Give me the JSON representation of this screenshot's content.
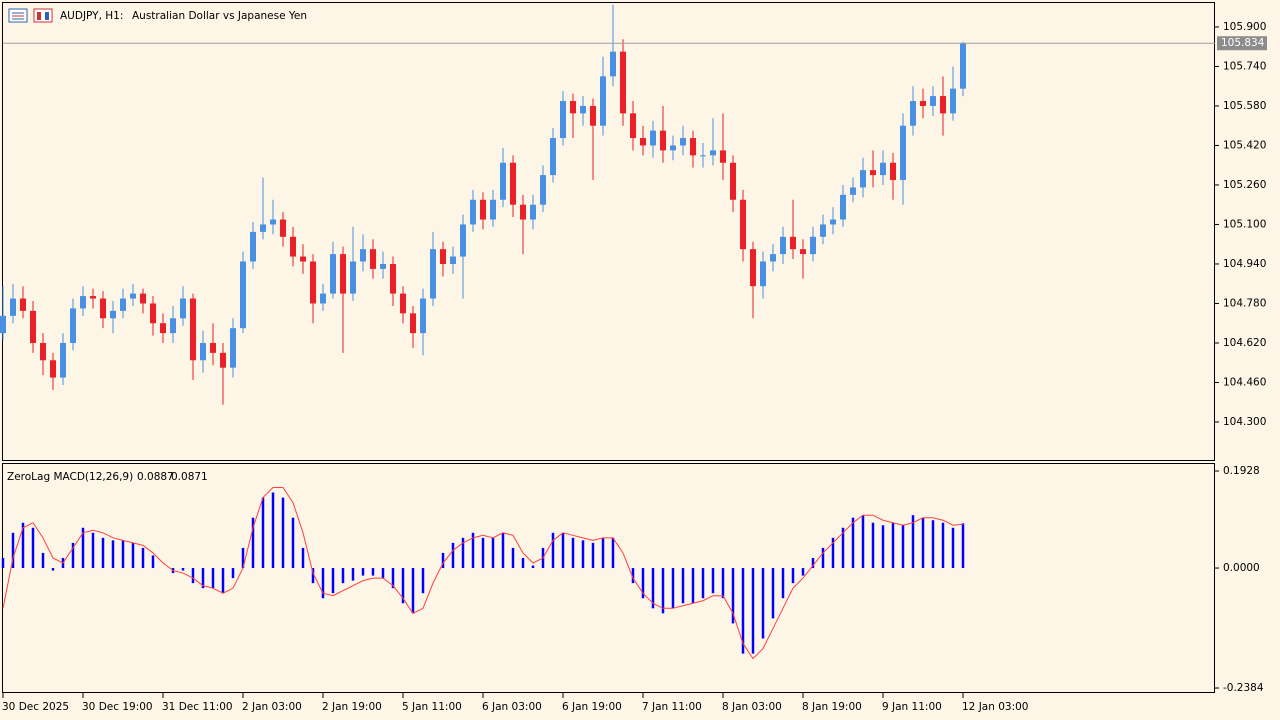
{
  "chart_data": [
    {
      "type": "candlestick",
      "symbol": "AUDJPY, H1:",
      "title": "Australian Dollar vs Japanese Yen",
      "up_color": "#4a90e2",
      "down_color": "#e8202a",
      "open": [
        104.66,
        104.73,
        104.8,
        104.75,
        104.62,
        104.55,
        104.48,
        104.62,
        104.76,
        104.81,
        104.8,
        104.72,
        104.75,
        104.8,
        104.82,
        104.78,
        104.7,
        104.66,
        104.72,
        104.8,
        104.55,
        104.62,
        104.58,
        104.52,
        104.68,
        104.95,
        105.07,
        105.1,
        105.12,
        105.05,
        104.97,
        104.95,
        104.78,
        104.82,
        104.98,
        104.82,
        104.95,
        105.0,
        104.92,
        104.94,
        104.82,
        104.74,
        104.66,
        104.8,
        105.0,
        104.94,
        104.97,
        105.1,
        105.2,
        105.12,
        105.2,
        105.35,
        105.18,
        105.12,
        105.18,
        105.3,
        105.45,
        105.6,
        105.55,
        105.58,
        105.5,
        105.7,
        105.8,
        105.55,
        105.45,
        105.42,
        105.48,
        105.4,
        105.42,
        105.45,
        105.38,
        105.38,
        105.4,
        105.35,
        105.2,
        105.0,
        104.85,
        104.95,
        104.98,
        105.05,
        105.0,
        104.98,
        105.05,
        105.1,
        105.12,
        105.22,
        105.25,
        105.32,
        105.3,
        105.35,
        105.28,
        105.5,
        105.6,
        105.58,
        105.62,
        105.55,
        105.65
      ],
      "high": [
        104.85,
        104.86,
        104.85,
        104.79,
        104.66,
        104.58,
        104.66,
        104.8,
        104.85,
        104.84,
        104.83,
        104.79,
        104.84,
        104.86,
        104.84,
        104.81,
        104.74,
        104.77,
        104.85,
        104.82,
        104.67,
        104.7,
        104.62,
        104.72,
        104.99,
        105.11,
        105.29,
        105.2,
        105.15,
        105.09,
        105.02,
        104.98,
        104.86,
        105.03,
        105.01,
        105.09,
        105.06,
        105.04,
        104.99,
        104.97,
        104.85,
        104.77,
        104.84,
        105.07,
        105.03,
        105.01,
        105.14,
        105.24,
        105.23,
        105.24,
        105.41,
        105.38,
        105.22,
        105.22,
        105.34,
        105.49,
        105.64,
        105.63,
        105.62,
        105.61,
        105.78,
        105.99,
        105.85,
        105.6,
        105.5,
        105.52,
        105.58,
        105.46,
        105.5,
        105.48,
        105.43,
        105.53,
        105.55,
        105.38,
        105.24,
        105.03,
        104.99,
        105.02,
        105.09,
        105.2,
        105.04,
        105.09,
        105.14,
        105.17,
        105.26,
        105.29,
        105.37,
        105.4,
        105.4,
        105.39,
        105.55,
        105.66,
        105.65,
        105.66,
        105.7,
        105.74,
        105.84
      ],
      "low": [
        104.63,
        104.7,
        104.72,
        104.58,
        104.49,
        104.43,
        104.45,
        104.59,
        104.73,
        104.76,
        104.68,
        104.66,
        104.72,
        104.77,
        104.74,
        104.65,
        104.62,
        104.62,
        104.69,
        104.47,
        104.5,
        104.53,
        104.37,
        104.48,
        104.66,
        104.92,
        105.04,
        105.06,
        105.01,
        104.93,
        104.9,
        104.7,
        104.75,
        104.8,
        104.58,
        104.79,
        104.91,
        104.88,
        104.88,
        104.77,
        104.7,
        104.6,
        104.57,
        104.77,
        104.89,
        104.9,
        104.8,
        105.07,
        105.08,
        105.09,
        105.17,
        105.13,
        104.98,
        105.08,
        105.15,
        105.27,
        105.42,
        105.45,
        105.5,
        105.28,
        105.46,
        105.66,
        105.5,
        105.4,
        105.38,
        105.37,
        105.35,
        105.36,
        105.38,
        105.33,
        105.33,
        105.34,
        105.28,
        105.15,
        104.95,
        104.72,
        104.8,
        104.91,
        104.94,
        104.96,
        104.88,
        104.95,
        105.02,
        105.06,
        105.09,
        105.19,
        105.21,
        105.25,
        105.26,
        105.2,
        105.18,
        105.46,
        105.53,
        105.54,
        105.46,
        105.52,
        105.62
      ],
      "close": [
        104.73,
        104.8,
        104.75,
        104.62,
        104.55,
        104.48,
        104.62,
        104.76,
        104.81,
        104.8,
        104.72,
        104.75,
        104.8,
        104.82,
        104.78,
        104.7,
        104.66,
        104.72,
        104.8,
        104.55,
        104.62,
        104.58,
        104.52,
        104.68,
        104.95,
        105.07,
        105.1,
        105.12,
        105.05,
        104.97,
        104.95,
        104.78,
        104.82,
        104.98,
        104.82,
        104.95,
        105.0,
        104.92,
        104.94,
        104.82,
        104.74,
        104.66,
        104.8,
        105.0,
        104.94,
        104.97,
        105.1,
        105.2,
        105.12,
        105.2,
        105.35,
        105.18,
        105.12,
        105.18,
        105.3,
        105.45,
        105.6,
        105.55,
        105.58,
        105.5,
        105.7,
        105.8,
        105.55,
        105.45,
        105.42,
        105.48,
        105.4,
        105.42,
        105.45,
        105.38,
        105.38,
        105.4,
        105.35,
        105.2,
        105.0,
        104.85,
        104.95,
        104.98,
        105.05,
        105.0,
        104.98,
        105.05,
        105.1,
        105.12,
        105.22,
        105.25,
        105.32,
        105.3,
        105.35,
        105.28,
        105.5,
        105.6,
        105.58,
        105.62,
        105.55,
        105.65,
        105.834
      ],
      "ylim": [
        104.142,
        106.001
      ],
      "yticks": [
        {
          "value": 105.9,
          "label": "105.900"
        },
        {
          "value": 105.74,
          "label": "105.740"
        },
        {
          "value": 105.58,
          "label": "105.580"
        },
        {
          "value": 105.42,
          "label": "105.420"
        },
        {
          "value": 105.26,
          "label": "105.260"
        },
        {
          "value": 105.1,
          "label": "105.100"
        },
        {
          "value": 104.94,
          "label": "104.940"
        },
        {
          "value": 104.78,
          "label": "104.780"
        },
        {
          "value": 104.62,
          "label": "104.620"
        },
        {
          "value": 104.46,
          "label": "104.460"
        },
        {
          "value": 104.3,
          "label": "104.300"
        }
      ]
    },
    {
      "type": "macd",
      "title": "ZeroLag MACD(12,26,9)",
      "color": "#0000ff",
      "signal_color": "#ff4040",
      "categories": [
        "30 Dec 2025",
        null,
        null,
        null,
        null,
        null,
        null,
        null,
        "30 Dec 19:00",
        null,
        null,
        null,
        null,
        null,
        null,
        null,
        "31 Dec 11:00",
        null,
        null,
        null,
        null,
        null,
        null,
        null,
        "2 Jan 03:00",
        null,
        null,
        null,
        null,
        null,
        null,
        null,
        "2 Jan 19:00",
        null,
        null,
        null,
        null,
        null,
        null,
        null,
        "5 Jan 11:00",
        null,
        null,
        null,
        null,
        null,
        null,
        null,
        "6 Jan 03:00",
        null,
        null,
        null,
        null,
        null,
        null,
        null,
        "6 Jan 19:00",
        null,
        null,
        null,
        null,
        null,
        null,
        null,
        "7 Jan 11:00",
        null,
        null,
        null,
        null,
        null,
        null,
        null,
        "8 Jan 03:00",
        null,
        null,
        null,
        null,
        null,
        null,
        null,
        "8 Jan 19:00",
        null,
        null,
        null,
        null,
        null,
        null,
        null,
        "9 Jan 11:00",
        null,
        null,
        null,
        null,
        null,
        null,
        null,
        "12 Jan 03:00"
      ],
      "values": [
        0.02,
        0.07,
        0.09,
        0.08,
        0.03,
        -0.005,
        0.02,
        0.05,
        0.08,
        0.07,
        0.06,
        0.055,
        0.055,
        0.05,
        0.04,
        0.025,
        0.0,
        -0.01,
        -0.005,
        -0.03,
        -0.04,
        -0.04,
        -0.05,
        -0.02,
        0.04,
        0.1,
        0.14,
        0.15,
        0.14,
        0.1,
        0.04,
        -0.03,
        -0.06,
        -0.05,
        -0.03,
        -0.025,
        -0.015,
        -0.015,
        -0.02,
        -0.04,
        -0.07,
        -0.09,
        -0.05,
        0.0,
        0.03,
        0.05,
        0.06,
        0.07,
        0.06,
        0.06,
        0.07,
        0.04,
        0.02,
        0.005,
        0.04,
        0.07,
        0.07,
        0.06,
        0.055,
        0.05,
        0.06,
        0.06,
        0.0,
        -0.03,
        -0.06,
        -0.08,
        -0.09,
        -0.08,
        -0.07,
        -0.07,
        -0.06,
        -0.05,
        -0.06,
        -0.11,
        -0.17,
        -0.17,
        -0.14,
        -0.1,
        -0.06,
        -0.03,
        -0.015,
        0.02,
        0.04,
        0.06,
        0.08,
        0.1,
        0.105,
        0.09,
        0.085,
        0.09,
        0.085,
        0.105,
        0.1,
        0.095,
        0.09,
        0.08,
        0.0887
      ],
      "signal": [
        -0.08,
        0.02,
        0.08,
        0.09,
        0.06,
        0.02,
        0.01,
        0.04,
        0.07,
        0.075,
        0.07,
        0.06,
        0.055,
        0.05,
        0.045,
        0.03,
        0.01,
        -0.005,
        -0.01,
        -0.02,
        -0.035,
        -0.04,
        -0.05,
        -0.04,
        0.0,
        0.08,
        0.14,
        0.16,
        0.16,
        0.13,
        0.07,
        -0.01,
        -0.05,
        -0.055,
        -0.045,
        -0.035,
        -0.025,
        -0.02,
        -0.02,
        -0.035,
        -0.06,
        -0.09,
        -0.08,
        -0.03,
        0.01,
        0.035,
        0.05,
        0.06,
        0.065,
        0.06,
        0.07,
        0.065,
        0.03,
        0.01,
        0.02,
        0.055,
        0.07,
        0.065,
        0.06,
        0.055,
        0.06,
        0.06,
        0.03,
        -0.02,
        -0.05,
        -0.07,
        -0.08,
        -0.08,
        -0.075,
        -0.07,
        -0.065,
        -0.055,
        -0.055,
        -0.09,
        -0.15,
        -0.18,
        -0.16,
        -0.12,
        -0.08,
        -0.04,
        -0.02,
        0.005,
        0.03,
        0.05,
        0.07,
        0.09,
        0.105,
        0.105,
        0.095,
        0.09,
        0.085,
        0.09,
        0.1,
        0.1,
        0.095,
        0.085,
        0.0871
      ],
      "ylim": [
        -0.2483,
        0.2087
      ],
      "yticks": [
        0.1928,
        {
          "value": 0,
          "label": "0.0000"
        },
        -0.2384
      ]
    }
  ]
}
